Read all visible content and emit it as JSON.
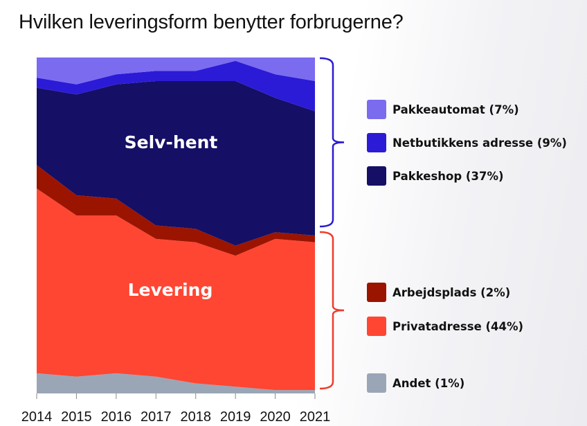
{
  "title": "Hvilken leveringsform benytter forbrugerne?",
  "colors": {
    "Andet": "#9aa6b6",
    "Privatadresse": "#ff4633",
    "Arbejdsplads": "#9b1400",
    "Pakkeshop": "#150f66",
    "Netbutikkens adresse": "#2b1bd6",
    "Pakkeautomat": "#7b6bef",
    "bracket_self": "#2a1bd0",
    "bracket_delivery": "#f03b2a"
  },
  "chart_data": {
    "type": "area",
    "stacked": "100%",
    "x": [
      "2014",
      "2015",
      "2016",
      "2017",
      "2018",
      "2019",
      "2020",
      "2021"
    ],
    "ylim": [
      0,
      100
    ],
    "series": [
      {
        "name": "Andet",
        "values": [
          6,
          5,
          6,
          5,
          3,
          2,
          1,
          1
        ]
      },
      {
        "name": "Privatadresse",
        "values": [
          55,
          48,
          47,
          41,
          42,
          39,
          45,
          44
        ]
      },
      {
        "name": "Arbejdsplads",
        "values": [
          7,
          6,
          5,
          4,
          4,
          3,
          2,
          2
        ]
      },
      {
        "name": "Pakkeshop",
        "values": [
          23,
          30,
          34,
          43,
          44,
          49,
          40,
          37
        ]
      },
      {
        "name": "Netbutikkens adresse",
        "values": [
          3,
          3,
          3,
          3,
          3,
          6,
          7,
          9
        ]
      },
      {
        "name": "Pakkeautomat",
        "values": [
          6,
          8,
          5,
          4,
          4,
          1,
          5,
          7
        ]
      }
    ],
    "legend": [
      {
        "series": "Pakkeautomat",
        "label": "Pakkeautomat (7%)"
      },
      {
        "series": "Netbutikkens adresse",
        "label": "Netbutikkens adresse (9%)"
      },
      {
        "series": "Pakkeshop",
        "label": "Pakkeshop (37%)"
      },
      {
        "series": "Arbejdsplads",
        "label": "Arbejdsplads (2%)"
      },
      {
        "series": "Privatadresse",
        "label": "Privatadresse (44%)"
      },
      {
        "series": "Andet",
        "label": "Andet (1%)"
      }
    ],
    "group_labels": {
      "self_pickup": "Selv-hent",
      "delivery": "Levering"
    },
    "legend_placement": "right",
    "grid": false
  }
}
